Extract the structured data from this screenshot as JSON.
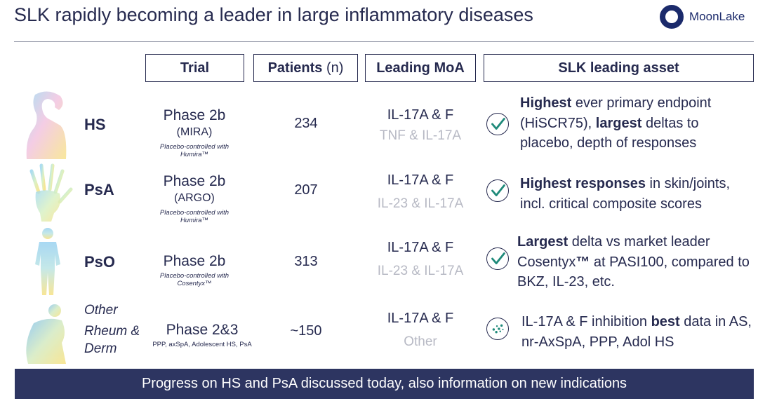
{
  "title": "SLK rapidly becoming a leader in large inflammatory diseases",
  "logo": {
    "text": "MoonLake"
  },
  "headers": {
    "trial": "Trial",
    "patients": "Patients",
    "patients_unit": "(n)",
    "moa": "Leading MoA",
    "asset": "SLK leading asset"
  },
  "rows": [
    {
      "indication": "HS",
      "phase": "Phase 2b",
      "code": "(MIRA)",
      "note": "Placebo-controlled with Humira™",
      "patients": "234",
      "moa_primary": "IL-17A & F",
      "moa_secondary": "TNF & IL-17A",
      "asset": {
        "b1": "Highest",
        "t1": " ever primary endpoint (HiSCR75), ",
        "b2": "largest",
        "t2": " deltas to placebo, depth of responses"
      }
    },
    {
      "indication": "PsA",
      "phase": "Phase 2b",
      "code": "(ARGO)",
      "note": "Placebo-controlled with Humira™",
      "patients": "207",
      "moa_primary": "IL-17A & F",
      "moa_secondary": "IL-23 & IL-17A",
      "asset": {
        "b1": "Highest responses",
        "t1": " in skin/joints, incl. critical composite scores"
      }
    },
    {
      "indication": "PsO",
      "phase": "Phase 2b",
      "note": "Placebo-controlled with Cosentyx™",
      "patients": "313",
      "moa_primary": "IL-17A & F",
      "moa_secondary": "IL-23 & IL-17A",
      "asset": {
        "b1": "Largest",
        "t1": " delta vs market leader Cosentyx",
        "b2": "™",
        "t2": " at PASI100, compared to BKZ, IL-23, etc."
      }
    },
    {
      "indication_lines": [
        "Other",
        "Rheum &",
        "Derm"
      ],
      "phase": "Phase 2&3",
      "note": "PPP, axSpA, Adolescent HS, PsA",
      "patients": "~150",
      "moa_primary": "IL-17A & F",
      "moa_secondary": "Other",
      "asset": {
        "t1": "IL-17A & F inhibition ",
        "b1": "best",
        "t2": " data in AS, nr-AxSpA, PPP, Adol HS"
      }
    }
  ],
  "banner": "Progress on HS and PsA discussed today, also information on new indications",
  "colors": {
    "navy": "#262a4f",
    "banner": "#2d3561",
    "check": "#1f8a7a",
    "muted": "#b7b9c4"
  }
}
